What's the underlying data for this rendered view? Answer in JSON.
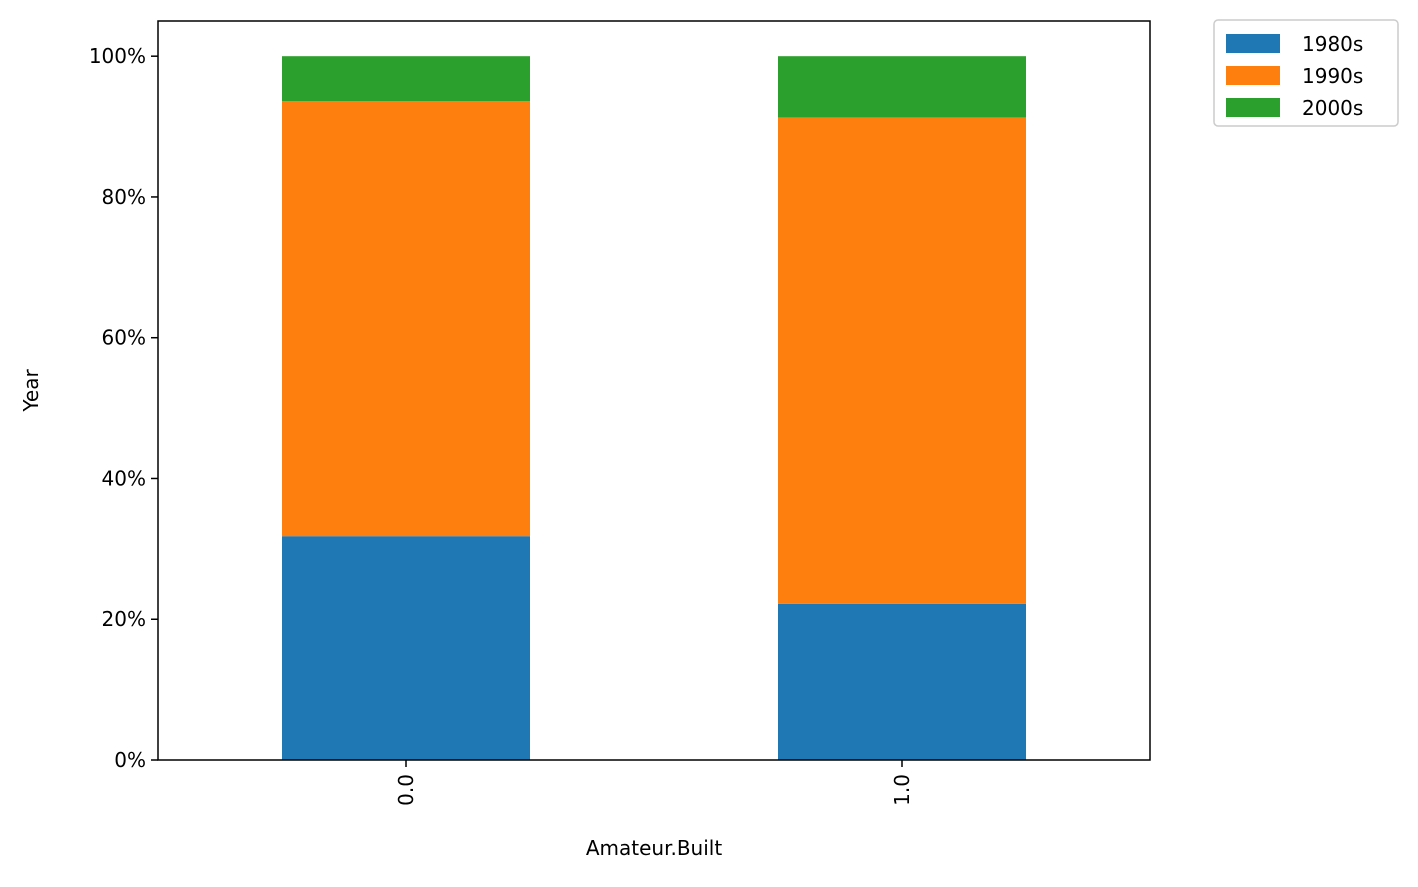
{
  "chart_data": {
    "type": "bar",
    "stacked": true,
    "title": "",
    "xlabel": "Amateur.Built",
    "ylabel": "Year",
    "categories": [
      "0.0",
      "1.0"
    ],
    "series": [
      {
        "name": "1980s",
        "color": "#1f77b4",
        "values": [
          0.318,
          0.222
        ]
      },
      {
        "name": "1990s",
        "color": "#ff7f0e",
        "values": [
          0.618,
          0.691
        ]
      },
      {
        "name": "2000s",
        "color": "#2ca02c",
        "values": [
          0.064,
          0.087
        ]
      }
    ],
    "ylim": [
      0,
      1.05
    ],
    "yticks": [
      0,
      0.2,
      0.4,
      0.6,
      0.8,
      1.0
    ],
    "ytick_labels": [
      "0%",
      "20%",
      "40%",
      "60%",
      "80%",
      "100%"
    ],
    "grid": false,
    "legend_position": "outside-top-right"
  }
}
